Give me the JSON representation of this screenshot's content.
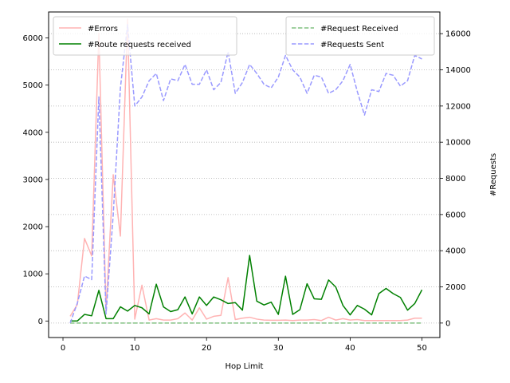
{
  "chart_data": {
    "type": "line",
    "xlabel": "Hop Limit",
    "ylabel_right": "#Requests",
    "xlim": [
      -2,
      52.5
    ],
    "ylim_left": [
      -350,
      6550
    ],
    "ylim_right": [
      -800,
      17200
    ],
    "x_ticks": [
      0,
      10,
      20,
      30,
      40,
      50
    ],
    "y_left_ticks": [
      0,
      1000,
      2000,
      3000,
      4000,
      5000,
      6000
    ],
    "y_right_ticks": [
      0,
      2000,
      4000,
      6000,
      8000,
      10000,
      12000,
      14000,
      16000
    ],
    "grid": "horizontal dotted lines at right-axis ticks",
    "legends": [
      {
        "placement": "upper-left",
        "entries": [
          "#Errors",
          "#Route requests received"
        ]
      },
      {
        "placement": "upper-right",
        "entries": [
          "#Request Received",
          "#Requests Sent"
        ]
      }
    ],
    "x": [
      1,
      2,
      3,
      4,
      5,
      6,
      7,
      8,
      9,
      10,
      11,
      12,
      13,
      14,
      15,
      16,
      17,
      18,
      19,
      20,
      21,
      22,
      23,
      24,
      25,
      26,
      27,
      28,
      29,
      30,
      31,
      32,
      33,
      34,
      35,
      36,
      37,
      38,
      39,
      40,
      41,
      42,
      43,
      44,
      45,
      46,
      47,
      48,
      49,
      50
    ],
    "series": [
      {
        "name": "#Errors",
        "axis": "left",
        "color": "#ffb3b3",
        "style": "solid",
        "values": [
          100,
          350,
          1750,
          1380,
          6100,
          220,
          3100,
          1800,
          6400,
          40,
          760,
          20,
          50,
          20,
          20,
          50,
          170,
          20,
          280,
          40,
          100,
          120,
          920,
          30,
          60,
          80,
          40,
          20,
          15,
          15,
          20,
          10,
          20,
          20,
          30,
          10,
          80,
          20,
          50,
          20,
          30,
          10,
          10,
          10,
          10,
          10,
          10,
          20,
          60,
          60
        ]
      },
      {
        "name": "#Route requests received",
        "axis": "left",
        "color": "#008000",
        "style": "solid",
        "values": [
          0,
          0,
          140,
          110,
          650,
          50,
          50,
          300,
          210,
          330,
          280,
          150,
          780,
          300,
          200,
          240,
          510,
          150,
          510,
          330,
          510,
          450,
          370,
          390,
          230,
          1390,
          420,
          340,
          400,
          140,
          950,
          140,
          240,
          790,
          470,
          460,
          870,
          720,
          330,
          130,
          330,
          250,
          130,
          580,
          690,
          580,
          500,
          230,
          370,
          660
        ]
      },
      {
        "name": "#Request Received",
        "axis": "right",
        "color": "#80c080",
        "style": "dashed",
        "values": [
          0,
          0,
          0,
          0,
          0,
          0,
          0,
          0,
          0,
          0,
          0,
          0,
          0,
          0,
          0,
          0,
          0,
          0,
          0,
          0,
          0,
          0,
          0,
          0,
          0,
          0,
          0,
          0,
          0,
          0,
          0,
          0,
          0,
          0,
          0,
          0,
          0,
          0,
          0,
          0,
          0,
          0,
          0,
          0,
          0,
          0,
          0,
          0,
          0,
          0
        ]
      },
      {
        "name": "#Requests Sent",
        "axis": "right",
        "color": "#9999ff",
        "style": "dashed",
        "values": [
          0,
          1100,
          2600,
          2400,
          12500,
          500,
          6000,
          13000,
          16500,
          12000,
          12500,
          13400,
          13800,
          12300,
          13500,
          13400,
          14300,
          13200,
          13200,
          14000,
          12900,
          13300,
          15000,
          12700,
          13300,
          14300,
          13800,
          13200,
          13000,
          13600,
          14800,
          14000,
          13600,
          12700,
          13700,
          13600,
          12700,
          12900,
          13400,
          14300,
          12800,
          11500,
          12900,
          12800,
          13800,
          13700,
          13100,
          13400,
          14800,
          14600
        ]
      }
    ]
  }
}
